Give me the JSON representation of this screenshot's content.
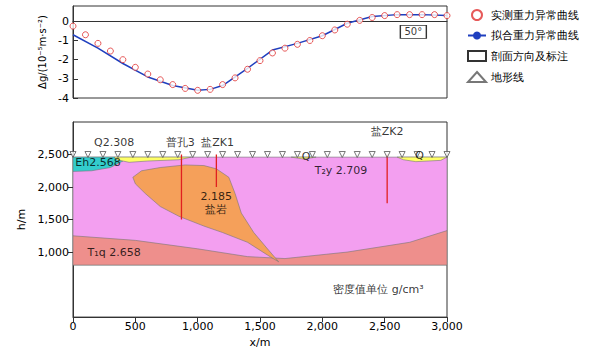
{
  "chart_data": [
    {
      "type": "line",
      "ylabel": "Δg/(10⁻⁵m·s⁻²)",
      "xlim": [
        0,
        3000
      ],
      "ylim": [
        -4,
        0.8
      ],
      "yticks": [
        -4,
        -3,
        -2,
        -1,
        0
      ],
      "tick_labels": "y",
      "grid": false,
      "legend": "right",
      "series": [
        {
          "name": "实测重力异常曲线",
          "type": "scatter",
          "marker": "circle",
          "color": "#e03030",
          "x": [
            0,
            100,
            200,
            300,
            400,
            500,
            600,
            700,
            800,
            900,
            1000,
            1100,
            1200,
            1300,
            1400,
            1500,
            1600,
            1700,
            1800,
            1900,
            2000,
            2100,
            2200,
            2300,
            2400,
            2500,
            2600,
            2700,
            2800,
            2900,
            3000
          ],
          "values": [
            -0.25,
            -0.7,
            -1.15,
            -1.55,
            -2.0,
            -2.4,
            -2.75,
            -3.05,
            -3.3,
            -3.5,
            -3.6,
            -3.55,
            -3.3,
            -2.95,
            -2.5,
            -2.05,
            -1.65,
            -1.4,
            -1.2,
            -1.0,
            -0.75,
            -0.45,
            -0.15,
            0.05,
            0.2,
            0.3,
            0.35,
            0.35,
            0.35,
            0.35,
            0.3
          ]
        },
        {
          "name": "拟合重力异常曲线",
          "type": "line",
          "color": "#1f3fbf",
          "x": [
            0,
            200,
            400,
            600,
            800,
            1000,
            1100,
            1200,
            1400,
            1600,
            1800,
            2000,
            2200,
            2400,
            2600,
            2800,
            3000
          ],
          "values": [
            -0.7,
            -1.4,
            -2.2,
            -2.9,
            -3.35,
            -3.6,
            -3.55,
            -3.35,
            -2.45,
            -1.5,
            -1.15,
            -0.75,
            -0.1,
            0.25,
            0.35,
            0.35,
            0.3
          ]
        },
        {
          "name": "剖面方向及标注",
          "type": "annotation",
          "text": "50°",
          "x": 2730,
          "y": -0.55
        }
      ]
    },
    {
      "type": "section",
      "xlabel": "x/m",
      "ylabel": "h/m",
      "xlim": [
        0,
        3000
      ],
      "ylim": [
        0,
        3000
      ],
      "xticks": [
        0,
        500,
        1000,
        1500,
        2000,
        2500,
        3000
      ],
      "yticks": [
        1000,
        1500,
        2000,
        2500
      ],
      "grid": false,
      "units": [
        {
          "color": "#f39ff0",
          "points": [
            [
              0,
              2460
            ],
            [
              3000,
              2460
            ],
            [
              3000,
              800
            ],
            [
              0,
              800
            ]
          ]
        },
        {
          "color": "#ee8f8c",
          "points": [
            [
              0,
              800
            ],
            [
              0,
              1250
            ],
            [
              500,
              1180
            ],
            [
              1000,
              1050
            ],
            [
              1400,
              930
            ],
            [
              1700,
              900
            ],
            [
              2200,
              1000
            ],
            [
              2700,
              1150
            ],
            [
              3000,
              1330
            ],
            [
              3000,
              800
            ]
          ]
        },
        {
          "color": "#f5a05a",
          "points": [
            [
              480,
              2150
            ],
            [
              550,
              2250
            ],
            [
              700,
              2300
            ],
            [
              900,
              2340
            ],
            [
              1050,
              2330
            ],
            [
              1150,
              2280
            ],
            [
              1250,
              2150
            ],
            [
              1300,
              1900
            ],
            [
              1350,
              1600
            ],
            [
              1450,
              1300
            ],
            [
              1560,
              1050
            ],
            [
              1650,
              850
            ],
            [
              1580,
              930
            ],
            [
              1400,
              1150
            ],
            [
              1200,
              1300
            ],
            [
              1050,
              1400
            ],
            [
              850,
              1550
            ],
            [
              700,
              1700
            ],
            [
              580,
              1900
            ],
            [
              500,
              2050
            ]
          ]
        },
        {
          "color": "#33cccc",
          "points": [
            [
              0,
              2460
            ],
            [
              330,
              2460
            ],
            [
              400,
              2400
            ],
            [
              300,
              2300
            ],
            [
              150,
              2250
            ],
            [
              0,
              2240
            ]
          ]
        },
        {
          "color": "#ffff66",
          "points": [
            [
              330,
              2460
            ],
            [
              950,
              2460
            ],
            [
              850,
              2420
            ],
            [
              600,
              2400
            ],
            [
              450,
              2380
            ],
            [
              350,
              2420
            ]
          ]
        },
        {
          "color": "#ffff66",
          "points": [
            [
              1750,
              2460
            ],
            [
              1950,
              2460
            ],
            [
              1850,
              2430
            ]
          ]
        },
        {
          "color": "#ffff66",
          "points": [
            [
              2600,
              2460
            ],
            [
              3000,
              2460
            ],
            [
              2950,
              2410
            ],
            [
              2750,
              2390
            ],
            [
              2650,
              2420
            ]
          ]
        }
      ],
      "drillholes": [
        {
          "color": "#e02020",
          "x": 870,
          "top": 2500,
          "bottom": 1500
        },
        {
          "color": "#e02020",
          "x": 1150,
          "top": 2500,
          "bottom": 2000
        },
        {
          "color": "#e02020",
          "x": 2520,
          "top": 2500,
          "bottom": 1750
        }
      ],
      "series": [
        {
          "name": "地形线",
          "type": "scatter",
          "marker": "triangle-down",
          "color": "#555555",
          "x": [
            0,
            120,
            240,
            360,
            480,
            600,
            720,
            840,
            960,
            1080,
            1200,
            1320,
            1440,
            1560,
            1680,
            1800,
            1920,
            2040,
            2160,
            2280,
            2400,
            2520,
            2640,
            2760,
            2880,
            3000
          ],
          "values": [
            2500,
            2500,
            2500,
            2500,
            2500,
            2500,
            2500,
            2500,
            2500,
            2500,
            2500,
            2500,
            2500,
            2500,
            2500,
            2500,
            2500,
            2500,
            2500,
            2500,
            2500,
            2500,
            2500,
            2500,
            2500,
            2500
          ]
        }
      ],
      "annotations": [
        {
          "text": "Q2.308",
          "x": 330,
          "y": 2690
        },
        {
          "text": "普孔3",
          "x": 860,
          "y": 2690
        },
        {
          "text": "盐ZK1",
          "x": 1160,
          "y": 2690
        },
        {
          "text": "盐ZK2",
          "x": 2520,
          "y": 2850
        },
        {
          "text": "Eh2.568",
          "x": 200,
          "y": 2380
        },
        {
          "text": "Q",
          "x": 1870,
          "y": 2470
        },
        {
          "text": "Q",
          "x": 2780,
          "y": 2480
        },
        {
          "text": "T₂y 2.709",
          "x": 2150,
          "y": 2260
        },
        {
          "text": "2.185",
          "x": 1150,
          "y": 1860
        },
        {
          "text": "盐岩",
          "x": 1150,
          "y": 1650
        },
        {
          "text": "T₁q 2.658",
          "x": 330,
          "y": 1000
        },
        {
          "text": "密度值单位 g/cm³",
          "x": 2450,
          "y": 420
        }
      ]
    }
  ]
}
